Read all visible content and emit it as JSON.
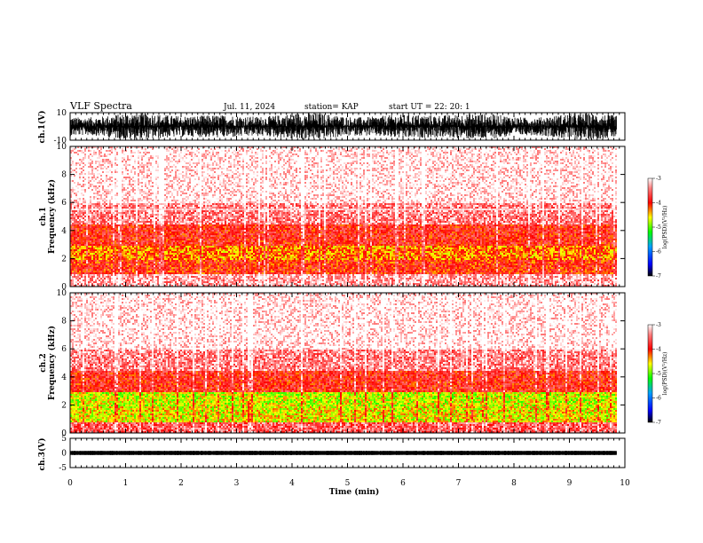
{
  "header": {
    "title": "VLF Spectra",
    "date": "Jul. 11, 2024",
    "station": "station= KAP",
    "start": "start UT =  22: 20: 1"
  },
  "chart_data": [
    {
      "type": "line",
      "panel": "ch1-waveform",
      "ylabel": "ch.1(V)",
      "ylim": [
        -10,
        10
      ],
      "y_ticks": [
        "10",
        "-10"
      ],
      "xlim": [
        0,
        10
      ],
      "data_end_min": 9.85
    },
    {
      "type": "heatmap",
      "panel": "ch1-spectrogram",
      "ylabel": "ch.1\nFrequency (kHz)",
      "xlim": [
        0,
        10
      ],
      "ylim": [
        0,
        10
      ],
      "y_ticks": [
        "0",
        "2",
        "4",
        "6",
        "8",
        "10"
      ],
      "data_end_min": 9.85,
      "colorbar": {
        "label": "log(PSD)(V²/Hz)",
        "ticks": [
          "-3",
          "-4",
          "-5",
          "-6",
          "-7"
        ],
        "range": [
          -7,
          -3
        ]
      },
      "approx_level_by_band": [
        {
          "from_khz": 0.0,
          "to_khz": 1.0,
          "log_psd": -3.3
        },
        {
          "from_khz": 1.0,
          "to_khz": 2.0,
          "log_psd": -4.0
        },
        {
          "from_khz": 2.0,
          "to_khz": 3.0,
          "log_psd": -4.3
        },
        {
          "from_khz": 3.0,
          "to_khz": 4.5,
          "log_psd": -3.9
        },
        {
          "from_khz": 4.5,
          "to_khz": 6.0,
          "log_psd": -3.4
        },
        {
          "from_khz": 6.0,
          "to_khz": 10.0,
          "log_psd": -3.0
        }
      ]
    },
    {
      "type": "heatmap",
      "panel": "ch2-spectrogram",
      "ylabel": "ch.2\nFrequency (kHz)",
      "xlim": [
        0,
        10
      ],
      "ylim": [
        0,
        10
      ],
      "y_ticks": [
        "0",
        "2",
        "4",
        "6",
        "8",
        "10"
      ],
      "data_end_min": 9.85,
      "colorbar": {
        "label": "log(PSD)(V²/Hz)",
        "ticks": [
          "-3",
          "-4",
          "-5",
          "-6",
          "-7"
        ],
        "range": [
          -7,
          -3
        ]
      },
      "approx_level_by_band": [
        {
          "from_khz": 0.0,
          "to_khz": 0.8,
          "log_psd": -3.6
        },
        {
          "from_khz": 0.8,
          "to_khz": 2.0,
          "log_psd": -4.6
        },
        {
          "from_khz": 2.0,
          "to_khz": 3.0,
          "log_psd": -4.7
        },
        {
          "from_khz": 3.0,
          "to_khz": 4.5,
          "log_psd": -3.9
        },
        {
          "from_khz": 4.5,
          "to_khz": 6.0,
          "log_psd": -3.4
        },
        {
          "from_khz": 6.0,
          "to_khz": 10.0,
          "log_psd": -3.0
        }
      ]
    },
    {
      "type": "line",
      "panel": "ch3-waveform",
      "ylabel": "ch.3(V)",
      "ylim": [
        -5,
        5
      ],
      "y_ticks": [
        "5",
        "0",
        "-5"
      ],
      "xlim": [
        0,
        10
      ],
      "data_end_min": 9.85
    }
  ],
  "x_axis": {
    "label": "Time (min)",
    "ticks": [
      "0",
      "1",
      "2",
      "3",
      "4",
      "5",
      "6",
      "7",
      "8",
      "9",
      "10"
    ]
  },
  "colors": {
    "high": "#ffffff",
    "red": "#ff0000",
    "yellow": "#ffff00",
    "green": "#00ff00",
    "blue": "#0000ff",
    "low": "#000000"
  }
}
